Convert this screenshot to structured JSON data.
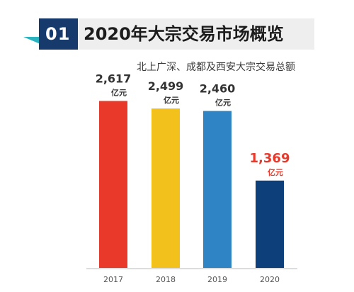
{
  "header": {
    "badge": "01",
    "title": "2020年大宗交易市场概览"
  },
  "chart_data": {
    "type": "bar",
    "title": "北上广深、成都及西安大宗交易总额",
    "categories": [
      "2017",
      "2018",
      "2019",
      "2020"
    ],
    "values": [
      2617,
      2499,
      2460,
      1369
    ],
    "value_labels": [
      "2,617",
      "2,499",
      "2,460",
      "1,369"
    ],
    "unit": "亿元",
    "colors": [
      "#e8392b",
      "#f2c11c",
      "#2f84c6",
      "#0d3f7a"
    ],
    "highlight_label_color": "#e8392b",
    "default_label_color": "#333333",
    "highlight_index": 3,
    "ylim": [
      0,
      3000
    ],
    "grid": false,
    "legend": "none"
  }
}
